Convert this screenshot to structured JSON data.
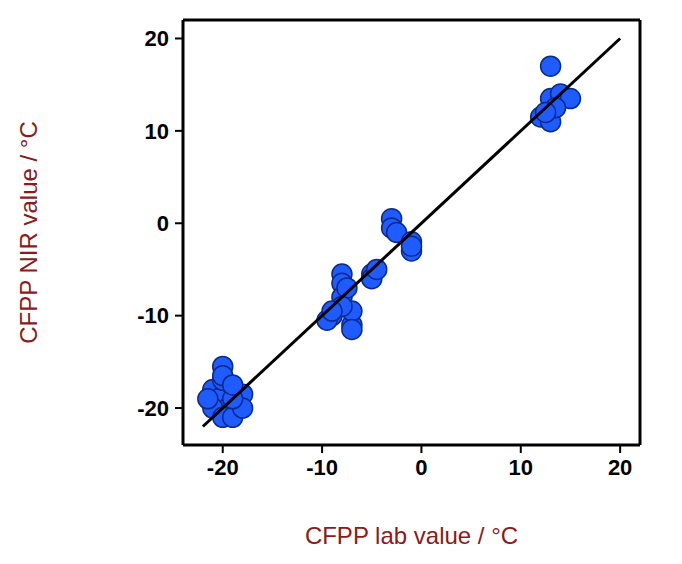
{
  "chart_data": {
    "type": "scatter",
    "xlabel": "CFPP lab value / °C",
    "ylabel": "CFPP NIR value / °C",
    "xlim": [
      -24,
      22
    ],
    "ylim": [
      -24,
      22
    ],
    "xticks": [
      -20,
      -10,
      0,
      10,
      20
    ],
    "yticks": [
      -20,
      -10,
      0,
      10,
      20
    ],
    "series": [
      {
        "type": "scatter",
        "marker": "circle",
        "color": "#1f5cff",
        "x": [
          -21,
          -20.5,
          -20,
          -20,
          -19.5,
          -21,
          -20,
          -19,
          -18,
          -18,
          -19,
          -21.5,
          -20,
          -19,
          -9,
          -9.5,
          -8,
          -8,
          -8,
          -7.5,
          -7,
          -7,
          -8,
          -9,
          -7,
          -5,
          -5,
          -4.5,
          -3,
          -3,
          -2.5,
          -1,
          -1,
          -1,
          12,
          13,
          13,
          13,
          14,
          15,
          13.5,
          12.5
        ],
        "values": [
          -18,
          -19,
          -15.5,
          -17,
          -20,
          -20,
          -21,
          -21,
          -18.5,
          -20,
          -19,
          -19,
          -16.5,
          -17.5,
          -10,
          -10.5,
          -5.5,
          -6.5,
          -8,
          -7,
          -11,
          -9.5,
          -9,
          -9.5,
          -11.5,
          -5.5,
          -6,
          -5,
          0.5,
          -0.5,
          -1,
          -2,
          -3,
          -2.5,
          11.5,
          11,
          17,
          13.5,
          14,
          13.5,
          12.5,
          12
        ]
      },
      {
        "type": "line",
        "line_style": "solid",
        "color": "#000000",
        "x": [
          -22,
          20
        ],
        "values": [
          -22,
          20
        ]
      }
    ]
  }
}
